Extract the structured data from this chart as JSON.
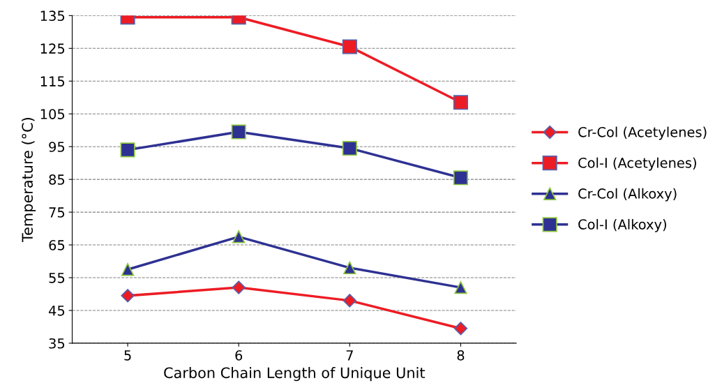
{
  "chart_data": {
    "type": "line",
    "xlabel": "Carbon Chain Length of Unique Unit",
    "ylabel": "Temperature (°C)",
    "categories": [
      "5",
      "6",
      "7",
      "8"
    ],
    "series": [
      {
        "name": "Cr-Col (Acetylenes)",
        "color": "#ed1c24",
        "marker": "diamond",
        "values": [
          49.5,
          52,
          48,
          39.5
        ]
      },
      {
        "name": "Col-I (Acetylenes)",
        "color": "#ed1c24",
        "marker": "square",
        "values": [
          134.5,
          134.5,
          125.5,
          108.5
        ]
      },
      {
        "name": "Cr-Col (Alkoxy)",
        "color": "#2e3192",
        "marker": "triangle",
        "values": [
          57.5,
          67.5,
          58,
          52
        ]
      },
      {
        "name": "Col-I (Alkoxy)",
        "color": "#2e3192",
        "marker": "square",
        "values": [
          94,
          99.5,
          94.5,
          85.5
        ]
      }
    ],
    "ylim": [
      35,
      135
    ],
    "yticks": [
      35,
      45,
      55,
      65,
      75,
      85,
      95,
      105,
      115,
      125,
      135
    ],
    "grid": "y",
    "legend": "right",
    "line_style": "solid"
  }
}
